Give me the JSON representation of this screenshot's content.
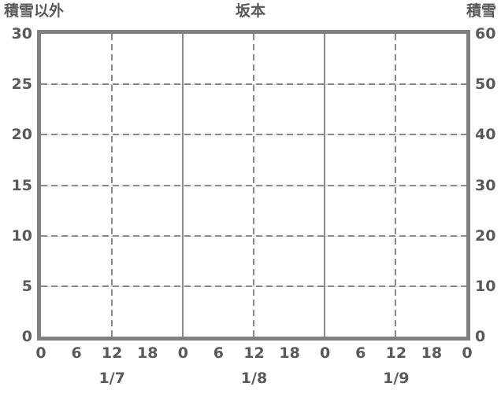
{
  "header": {
    "left_label": "積雪以外",
    "title": "坂本",
    "right_label": "積雪"
  },
  "axes": {
    "left_ticks": [
      "30",
      "25",
      "20",
      "15",
      "10",
      "5",
      "0"
    ],
    "right_ticks": [
      "60",
      "50",
      "40",
      "30",
      "20",
      "10",
      "0"
    ],
    "hour_ticks": [
      "0",
      "6",
      "12",
      "18",
      "0",
      "6",
      "12",
      "18",
      "0",
      "6",
      "12",
      "18",
      "0"
    ],
    "date_labels": [
      "1/7",
      "1/8",
      "1/9"
    ]
  },
  "colors": {
    "text": "#595959",
    "frame": "#808080",
    "grid": "#8a8a8a",
    "grid_light": "#d9d9d9"
  },
  "chart_data": {
    "type": "line",
    "title": "坂本",
    "x": {
      "days": [
        "1/7",
        "1/8",
        "1/9"
      ],
      "hour_ticks_per_day": [
        0,
        6,
        12,
        18
      ],
      "range_hours": [
        0,
        72
      ]
    },
    "y_left": {
      "label": "積雪以外",
      "range": [
        0,
        30
      ],
      "tick_step": 5
    },
    "y_right": {
      "label": "積雪",
      "range": [
        0,
        60
      ],
      "tick_step": 10
    },
    "series": [],
    "grid": {
      "horizontal": "dashed",
      "day_boundary_vertical": "solid",
      "noon_vertical": "dashed"
    },
    "legend": "none"
  }
}
